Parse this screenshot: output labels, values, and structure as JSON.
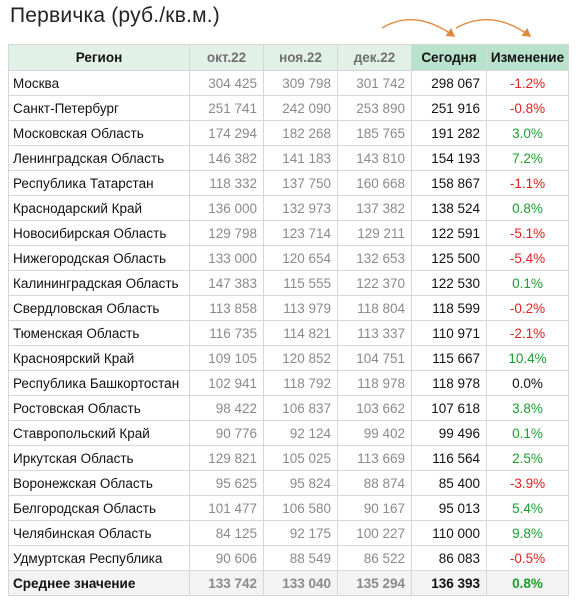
{
  "title": "Первичка (руб./кв.м.)",
  "headers": {
    "region": "Регион",
    "m1": "окт.22",
    "m2": "ноя.22",
    "m3": "дек.22",
    "today": "Сегодня",
    "change": "Изменение"
  },
  "colors": {
    "positive": "#1b9e2f",
    "negative": "#e0211f",
    "header_light": "#e2f1e8",
    "header_dark": "#b9e2cd",
    "arrow": "#e08a3c"
  },
  "rows": [
    {
      "region": "Москва",
      "m1": "304 425",
      "m2": "309 798",
      "m3": "301 742",
      "today": "298 067",
      "change": "-1.2%"
    },
    {
      "region": "Санкт-Петербург",
      "m1": "251 741",
      "m2": "242 090",
      "m3": "253 890",
      "today": "251 916",
      "change": "-0.8%"
    },
    {
      "region": "Московская Область",
      "m1": "174 294",
      "m2": "182 268",
      "m3": "185 765",
      "today": "191 282",
      "change": "3.0%"
    },
    {
      "region": "Ленинградская Область",
      "m1": "146 382",
      "m2": "141 183",
      "m3": "143 810",
      "today": "154 193",
      "change": "7.2%"
    },
    {
      "region": "Республика Татарстан",
      "m1": "118 332",
      "m2": "137 750",
      "m3": "160 668",
      "today": "158 867",
      "change": "-1.1%"
    },
    {
      "region": "Краснодарский Край",
      "m1": "136 000",
      "m2": "132 973",
      "m3": "137 382",
      "today": "138 524",
      "change": "0.8%"
    },
    {
      "region": "Новосибирская Область",
      "m1": "129 798",
      "m2": "123 714",
      "m3": "129 211",
      "today": "122 591",
      "change": "-5.1%"
    },
    {
      "region": "Нижегородская Область",
      "m1": "133 000",
      "m2": "120 654",
      "m3": "132 653",
      "today": "125 500",
      "change": "-5.4%"
    },
    {
      "region": "Калининградская Область",
      "m1": "147 383",
      "m2": "115 555",
      "m3": "122 370",
      "today": "122 530",
      "change": "0.1%"
    },
    {
      "region": "Свердловская Область",
      "m1": "113 858",
      "m2": "113 979",
      "m3": "118 804",
      "today": "118 599",
      "change": "-0.2%"
    },
    {
      "region": "Тюменская Область",
      "m1": "116 735",
      "m2": "114 821",
      "m3": "113 337",
      "today": "110 971",
      "change": "-2.1%"
    },
    {
      "region": "Красноярский Край",
      "m1": "109 105",
      "m2": "120 852",
      "m3": "104 751",
      "today": "115 667",
      "change": "10.4%"
    },
    {
      "region": "Республика Башкортостан",
      "m1": "102 941",
      "m2": "118 792",
      "m3": "118 978",
      "today": "118 978",
      "change": "0.0%"
    },
    {
      "region": "Ростовская Область",
      "m1": "98 422",
      "m2": "106 837",
      "m3": "103 662",
      "today": "107 618",
      "change": "3.8%"
    },
    {
      "region": "Ставропольский Край",
      "m1": "90 776",
      "m2": "92 124",
      "m3": "99 402",
      "today": "99 496",
      "change": "0.1%"
    },
    {
      "region": "Иркутская Область",
      "m1": "129 821",
      "m2": "105 025",
      "m3": "113 669",
      "today": "116 564",
      "change": "2.5%"
    },
    {
      "region": "Воронежская Область",
      "m1": "95 625",
      "m2": "95 824",
      "m3": "88 874",
      "today": "85 400",
      "change": "-3.9%"
    },
    {
      "region": "Белгородская Область",
      "m1": "101 477",
      "m2": "106 580",
      "m3": "90 167",
      "today": "95 013",
      "change": "5.4%"
    },
    {
      "region": "Челябинская Область",
      "m1": "84 125",
      "m2": "92 175",
      "m3": "100 227",
      "today": "110 000",
      "change": "9.8%"
    },
    {
      "region": "Удмуртская Республика",
      "m1": "90 606",
      "m2": "88 549",
      "m3": "86 522",
      "today": "86 083",
      "change": "-0.5%"
    }
  ],
  "average": {
    "region": "Среднее значение",
    "m1": "133 742",
    "m2": "133 040",
    "m3": "135 294",
    "today": "136 393",
    "change": "0.8%"
  }
}
